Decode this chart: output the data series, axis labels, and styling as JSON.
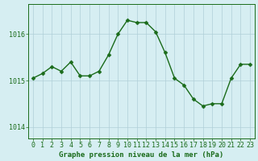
{
  "x": [
    0,
    1,
    2,
    3,
    4,
    5,
    6,
    7,
    8,
    9,
    10,
    11,
    12,
    13,
    14,
    15,
    16,
    17,
    18,
    19,
    20,
    21,
    22,
    23
  ],
  "y": [
    1015.05,
    1015.15,
    1015.3,
    1015.2,
    1015.4,
    1015.1,
    1015.1,
    1015.2,
    1015.55,
    1016.0,
    1016.3,
    1016.25,
    1016.25,
    1016.05,
    1015.6,
    1015.05,
    1014.9,
    1014.6,
    1014.45,
    1014.5,
    1014.5,
    1015.05,
    1015.35,
    1015.35
  ],
  "line_color": "#1a6b1a",
  "marker": "D",
  "marker_size": 2.5,
  "linewidth": 1.0,
  "bg_color": "#d6eef2",
  "grid_color": "#b0cfd8",
  "axis_color": "#1a6b1a",
  "xlabel": "Graphe pression niveau de la mer (hPa)",
  "xlabel_fontsize": 6.5,
  "xlabel_color": "#1a6b1a",
  "tick_color": "#1a6b1a",
  "tick_fontsize": 6.0,
  "ytick_labels": [
    "1014",
    "1015",
    "1016"
  ],
  "ytick_values": [
    1014,
    1015,
    1016
  ],
  "ylim": [
    1013.75,
    1016.65
  ],
  "xlim": [
    -0.5,
    23.5
  ]
}
